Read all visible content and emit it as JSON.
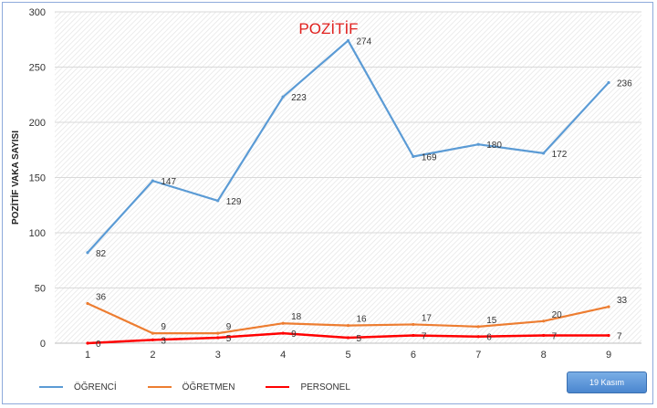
{
  "chart_data": {
    "type": "line",
    "title": "POZİTİF",
    "ylabel": "POZİTİF VAKA SAYISI",
    "xlabel": "",
    "categories": [
      "1",
      "2",
      "3",
      "4",
      "5",
      "6",
      "7",
      "8",
      "9"
    ],
    "ylim": [
      0,
      300
    ],
    "yticks": [
      0,
      50,
      100,
      150,
      200,
      250,
      300
    ],
    "grid": true,
    "legend_position": "bottom-left",
    "series": [
      {
        "name": "ÖĞRENCİ",
        "color": "#5b9bd5",
        "values": [
          82,
          147,
          129,
          223,
          274,
          169,
          180,
          172,
          236
        ]
      },
      {
        "name": "ÖĞRETMEN",
        "color": "#ed7d31",
        "values": [
          36,
          9,
          9,
          18,
          16,
          17,
          15,
          20,
          33
        ]
      },
      {
        "name": "PERSONEL",
        "color": "#ff0000",
        "values": [
          0,
          3,
          5,
          9,
          5,
          7,
          6,
          7,
          7
        ]
      }
    ]
  },
  "date_button": {
    "label": "19 Kasım"
  }
}
